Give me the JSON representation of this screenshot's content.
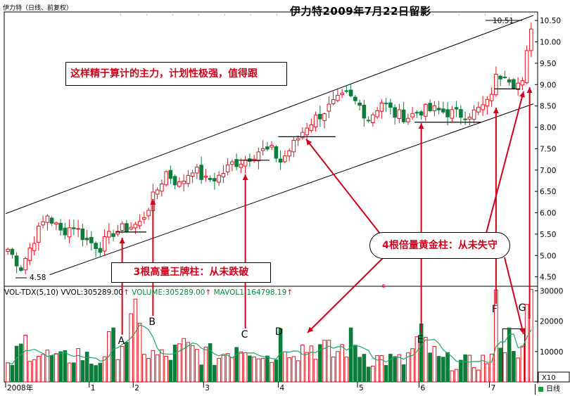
{
  "header": {
    "stock_info": "伊力特（日线、前复权）",
    "title": "伊力特2009年7月22日留影"
  },
  "annotations": {
    "top_box": "这样精于算计的主力，计划性极强，值得跟",
    "bottom_box": "3根高量王牌柱：从未跌破",
    "right_box": "4根倍量黄金柱：从未失守",
    "letters": [
      "A",
      "B",
      "C",
      "D",
      "E",
      "F",
      "G"
    ],
    "high_label": "10.51",
    "low_label": "4.58"
  },
  "volume_header": {
    "indicator": "VOL-TDX(5,10)",
    "vvol": "VVOL:305289.00",
    "volume": "VOLUME:305289.00",
    "mavol": "MAVOL1:164798.19"
  },
  "x_axis": {
    "year_label": "2008年",
    "month_labels": [
      "1",
      "2",
      "3",
      "4",
      "5",
      "6",
      "7"
    ]
  },
  "footer": {
    "tab_label": "日线",
    "unit_label": "X10"
  },
  "colors": {
    "up": "#e8101e",
    "down": "#0b7d3b",
    "ma": "#1aa866",
    "trend": "#000000",
    "annotation": "#d0021b"
  },
  "chart_data": {
    "type": "candlestick",
    "title": "伊力特2009年7月22日留影",
    "price_axis": {
      "ticks": [
        4.5,
        5.0,
        5.5,
        6.0,
        6.5,
        7.0,
        7.5,
        8.0,
        8.5,
        9.0,
        9.5,
        10.0,
        10.5
      ],
      "range": [
        4.28,
        10.7
      ],
      "high": 10.51,
      "low": 4.58
    },
    "volume_axis": {
      "ticks": [
        10000,
        20000,
        30000
      ],
      "range": [
        0,
        31500
      ],
      "unit": "X10"
    },
    "months": [
      {
        "label": "2008年",
        "index": 0
      },
      {
        "label": "1",
        "index": 19
      },
      {
        "label": "2",
        "index": 29
      },
      {
        "label": "3",
        "index": 45
      },
      {
        "label": "4",
        "index": 62
      },
      {
        "label": "5",
        "index": 80
      },
      {
        "label": "6",
        "index": 94
      },
      {
        "label": "7",
        "index": 110
      }
    ],
    "price_anchors": [
      [
        0,
        5.15
      ],
      [
        3,
        4.72
      ],
      [
        6,
        5.4
      ],
      [
        9,
        5.95
      ],
      [
        12,
        5.55
      ],
      [
        15,
        5.7
      ],
      [
        18,
        5.35
      ],
      [
        21,
        5.2
      ],
      [
        24,
        5.55
      ],
      [
        27,
        5.65
      ],
      [
        30,
        5.75
      ],
      [
        33,
        6.35
      ],
      [
        36,
        6.95
      ],
      [
        39,
        6.65
      ],
      [
        42,
        7.05
      ],
      [
        45,
        6.75
      ],
      [
        48,
        6.85
      ],
      [
        51,
        7.15
      ],
      [
        54,
        7.25
      ],
      [
        57,
        7.45
      ],
      [
        60,
        7.45
      ],
      [
        62,
        7.2
      ],
      [
        65,
        7.6
      ],
      [
        68,
        8.05
      ],
      [
        71,
        8.3
      ],
      [
        74,
        8.55
      ],
      [
        77,
        8.75
      ],
      [
        80,
        8.5
      ],
      [
        82,
        8.2
      ],
      [
        85,
        8.6
      ],
      [
        88,
        8.3
      ],
      [
        91,
        8.25
      ],
      [
        94,
        8.4
      ],
      [
        97,
        8.4
      ],
      [
        100,
        8.35
      ],
      [
        103,
        8.3
      ],
      [
        106,
        8.35
      ],
      [
        109,
        8.55
      ],
      [
        111,
        9.15
      ],
      [
        113,
        9.3
      ],
      [
        115,
        9.05
      ],
      [
        117,
        9.0
      ],
      [
        119,
        10.4
      ]
    ],
    "volume_anchors": [
      [
        0,
        4500
      ],
      [
        4,
        13000
      ],
      [
        8,
        9000
      ],
      [
        12,
        7000
      ],
      [
        16,
        9500
      ],
      [
        20,
        6000
      ],
      [
        23,
        12000
      ],
      [
        26,
        14000
      ],
      [
        29,
        19000
      ],
      [
        32,
        9000
      ],
      [
        36,
        8000
      ],
      [
        40,
        11000
      ],
      [
        44,
        9500
      ],
      [
        48,
        8000
      ],
      [
        52,
        13000
      ],
      [
        56,
        12000
      ],
      [
        60,
        7500
      ],
      [
        62,
        15000
      ],
      [
        66,
        11000
      ],
      [
        70,
        12000
      ],
      [
        74,
        9000
      ],
      [
        78,
        13000
      ],
      [
        82,
        8000
      ],
      [
        86,
        7500
      ],
      [
        90,
        6500
      ],
      [
        94,
        14000
      ],
      [
        98,
        7000
      ],
      [
        102,
        6500
      ],
      [
        106,
        6000
      ],
      [
        110,
        8000
      ],
      [
        111,
        22000
      ],
      [
        113,
        13000
      ],
      [
        115,
        15000
      ],
      [
        117,
        9000
      ],
      [
        118,
        20000
      ],
      [
        119,
        30500
      ]
    ],
    "candles_count": 120,
    "trend_lines": [
      {
        "name": "upper",
        "from": [
          0,
          5.98
        ],
        "to": [
          120,
          10.62
        ]
      },
      {
        "name": "lower",
        "from": [
          10,
          4.55
        ],
        "to": [
          120,
          8.55
        ]
      }
    ],
    "support_lines": [
      {
        "name": "A",
        "from": [
          25,
          5.55
        ],
        "to": [
          32,
          5.55
        ],
        "price": 5.55
      },
      {
        "name": "C",
        "from": [
          53,
          7.23
        ],
        "to": [
          60,
          7.23
        ],
        "price": 7.23
      },
      {
        "name": "D",
        "from": [
          62,
          7.78
        ],
        "to": [
          75,
          7.78
        ],
        "price": 7.78
      },
      {
        "name": "E",
        "from": [
          93,
          8.12
        ],
        "to": [
          108,
          8.12
        ],
        "price": 8.12
      },
      {
        "name": "F",
        "from": [
          111,
          8.9
        ],
        "to": [
          117,
          8.9
        ],
        "price": 8.9
      }
    ],
    "volume_box": {
      "from_index": 113,
      "to_index": 117,
      "level": 17500
    },
    "signal_arrows": [
      {
        "label": "A",
        "index": 26
      },
      {
        "label": "B",
        "index": 33
      },
      {
        "label": "C",
        "index": 54
      },
      {
        "label": "D",
        "index": 63
      },
      {
        "label": "E",
        "index": 94
      },
      {
        "label": "F",
        "index": 111
      },
      {
        "label": "G",
        "index": 118
      }
    ]
  }
}
